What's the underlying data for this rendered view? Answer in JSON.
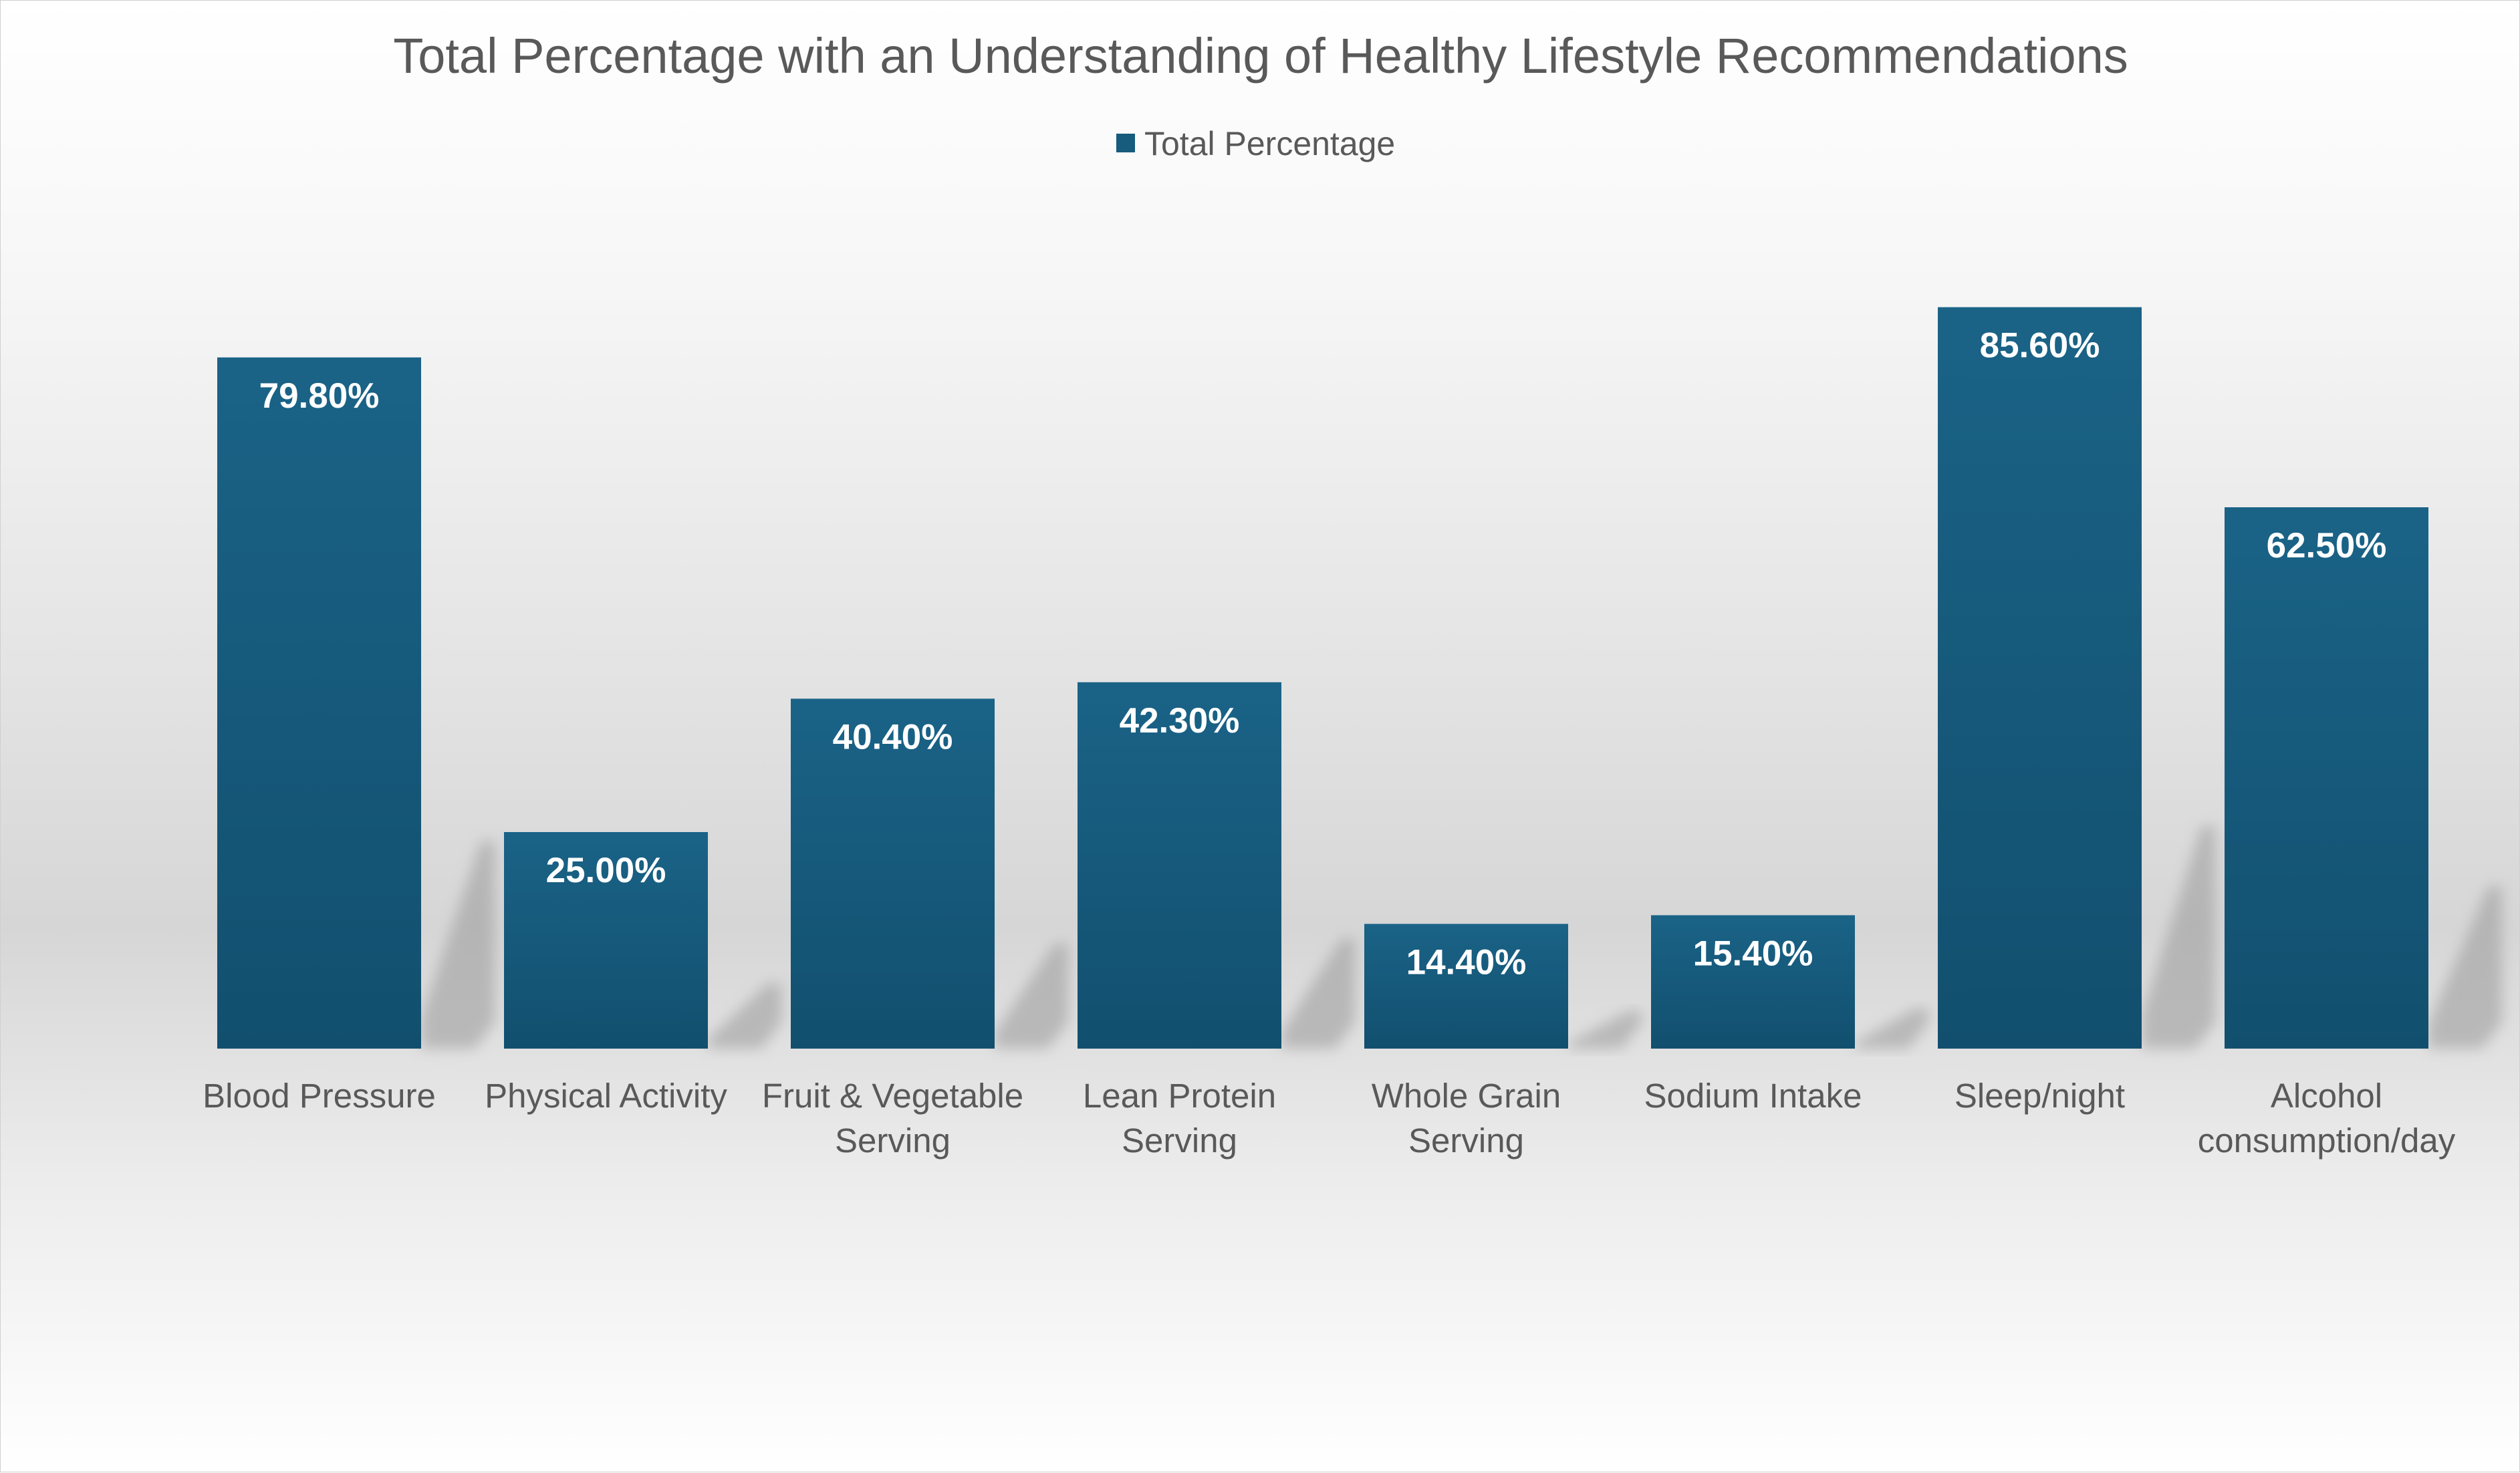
{
  "chart_data": {
    "type": "bar",
    "title": "Total Percentage with an Understanding of Healthy Lifestyle Recommendations",
    "legend": {
      "position": "top",
      "entries": [
        "Total Percentage"
      ]
    },
    "categories": [
      "Blood Pressure",
      "Physical Activity",
      "Fruit & Vegetable Serving",
      "Lean Protein Serving",
      "Whole Grain Serving",
      "Sodium Intake",
      "Sleep/night",
      "Alcohol consumption/day"
    ],
    "series": [
      {
        "name": "Total Percentage",
        "values": [
          79.8,
          25.0,
          40.4,
          42.3,
          14.4,
          15.4,
          85.6,
          62.5
        ],
        "labels": [
          "79.80%",
          "25.00%",
          "40.40%",
          "42.30%",
          "14.40%",
          "15.40%",
          "85.60%",
          "62.50%"
        ],
        "color": "#175b7d"
      }
    ],
    "ylim": [
      0,
      100
    ],
    "grid": false,
    "xlabel": "",
    "ylabel": ""
  }
}
